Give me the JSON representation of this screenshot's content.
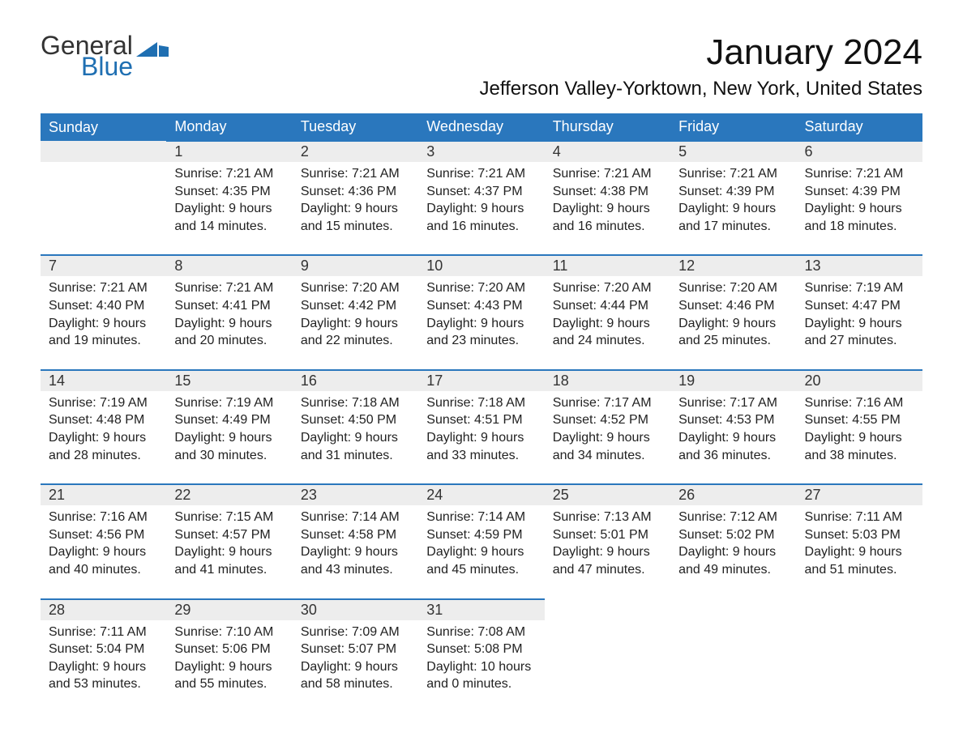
{
  "colors": {
    "header_bg": "#2a77bd",
    "header_text": "#ffffff",
    "daynum_bg": "#ededed",
    "row_border": "#2a77bd",
    "logo_gray": "#333333",
    "logo_blue": "#1f6fb2"
  },
  "logo": {
    "line1": "General",
    "line2": "Blue"
  },
  "title": "January 2024",
  "location": "Jefferson Valley-Yorktown, New York, United States",
  "day_headers": [
    "Sunday",
    "Monday",
    "Tuesday",
    "Wednesday",
    "Thursday",
    "Friday",
    "Saturday"
  ],
  "weeks": [
    [
      null,
      {
        "n": "1",
        "sunrise": "Sunrise: 7:21 AM",
        "sunset": "Sunset: 4:35 PM",
        "dl1": "Daylight: 9 hours",
        "dl2": "and 14 minutes."
      },
      {
        "n": "2",
        "sunrise": "Sunrise: 7:21 AM",
        "sunset": "Sunset: 4:36 PM",
        "dl1": "Daylight: 9 hours",
        "dl2": "and 15 minutes."
      },
      {
        "n": "3",
        "sunrise": "Sunrise: 7:21 AM",
        "sunset": "Sunset: 4:37 PM",
        "dl1": "Daylight: 9 hours",
        "dl2": "and 16 minutes."
      },
      {
        "n": "4",
        "sunrise": "Sunrise: 7:21 AM",
        "sunset": "Sunset: 4:38 PM",
        "dl1": "Daylight: 9 hours",
        "dl2": "and 16 minutes."
      },
      {
        "n": "5",
        "sunrise": "Sunrise: 7:21 AM",
        "sunset": "Sunset: 4:39 PM",
        "dl1": "Daylight: 9 hours",
        "dl2": "and 17 minutes."
      },
      {
        "n": "6",
        "sunrise": "Sunrise: 7:21 AM",
        "sunset": "Sunset: 4:39 PM",
        "dl1": "Daylight: 9 hours",
        "dl2": "and 18 minutes."
      }
    ],
    [
      {
        "n": "7",
        "sunrise": "Sunrise: 7:21 AM",
        "sunset": "Sunset: 4:40 PM",
        "dl1": "Daylight: 9 hours",
        "dl2": "and 19 minutes."
      },
      {
        "n": "8",
        "sunrise": "Sunrise: 7:21 AM",
        "sunset": "Sunset: 4:41 PM",
        "dl1": "Daylight: 9 hours",
        "dl2": "and 20 minutes."
      },
      {
        "n": "9",
        "sunrise": "Sunrise: 7:20 AM",
        "sunset": "Sunset: 4:42 PM",
        "dl1": "Daylight: 9 hours",
        "dl2": "and 22 minutes."
      },
      {
        "n": "10",
        "sunrise": "Sunrise: 7:20 AM",
        "sunset": "Sunset: 4:43 PM",
        "dl1": "Daylight: 9 hours",
        "dl2": "and 23 minutes."
      },
      {
        "n": "11",
        "sunrise": "Sunrise: 7:20 AM",
        "sunset": "Sunset: 4:44 PM",
        "dl1": "Daylight: 9 hours",
        "dl2": "and 24 minutes."
      },
      {
        "n": "12",
        "sunrise": "Sunrise: 7:20 AM",
        "sunset": "Sunset: 4:46 PM",
        "dl1": "Daylight: 9 hours",
        "dl2": "and 25 minutes."
      },
      {
        "n": "13",
        "sunrise": "Sunrise: 7:19 AM",
        "sunset": "Sunset: 4:47 PM",
        "dl1": "Daylight: 9 hours",
        "dl2": "and 27 minutes."
      }
    ],
    [
      {
        "n": "14",
        "sunrise": "Sunrise: 7:19 AM",
        "sunset": "Sunset: 4:48 PM",
        "dl1": "Daylight: 9 hours",
        "dl2": "and 28 minutes."
      },
      {
        "n": "15",
        "sunrise": "Sunrise: 7:19 AM",
        "sunset": "Sunset: 4:49 PM",
        "dl1": "Daylight: 9 hours",
        "dl2": "and 30 minutes."
      },
      {
        "n": "16",
        "sunrise": "Sunrise: 7:18 AM",
        "sunset": "Sunset: 4:50 PM",
        "dl1": "Daylight: 9 hours",
        "dl2": "and 31 minutes."
      },
      {
        "n": "17",
        "sunrise": "Sunrise: 7:18 AM",
        "sunset": "Sunset: 4:51 PM",
        "dl1": "Daylight: 9 hours",
        "dl2": "and 33 minutes."
      },
      {
        "n": "18",
        "sunrise": "Sunrise: 7:17 AM",
        "sunset": "Sunset: 4:52 PM",
        "dl1": "Daylight: 9 hours",
        "dl2": "and 34 minutes."
      },
      {
        "n": "19",
        "sunrise": "Sunrise: 7:17 AM",
        "sunset": "Sunset: 4:53 PM",
        "dl1": "Daylight: 9 hours",
        "dl2": "and 36 minutes."
      },
      {
        "n": "20",
        "sunrise": "Sunrise: 7:16 AM",
        "sunset": "Sunset: 4:55 PM",
        "dl1": "Daylight: 9 hours",
        "dl2": "and 38 minutes."
      }
    ],
    [
      {
        "n": "21",
        "sunrise": "Sunrise: 7:16 AM",
        "sunset": "Sunset: 4:56 PM",
        "dl1": "Daylight: 9 hours",
        "dl2": "and 40 minutes."
      },
      {
        "n": "22",
        "sunrise": "Sunrise: 7:15 AM",
        "sunset": "Sunset: 4:57 PM",
        "dl1": "Daylight: 9 hours",
        "dl2": "and 41 minutes."
      },
      {
        "n": "23",
        "sunrise": "Sunrise: 7:14 AM",
        "sunset": "Sunset: 4:58 PM",
        "dl1": "Daylight: 9 hours",
        "dl2": "and 43 minutes."
      },
      {
        "n": "24",
        "sunrise": "Sunrise: 7:14 AM",
        "sunset": "Sunset: 4:59 PM",
        "dl1": "Daylight: 9 hours",
        "dl2": "and 45 minutes."
      },
      {
        "n": "25",
        "sunrise": "Sunrise: 7:13 AM",
        "sunset": "Sunset: 5:01 PM",
        "dl1": "Daylight: 9 hours",
        "dl2": "and 47 minutes."
      },
      {
        "n": "26",
        "sunrise": "Sunrise: 7:12 AM",
        "sunset": "Sunset: 5:02 PM",
        "dl1": "Daylight: 9 hours",
        "dl2": "and 49 minutes."
      },
      {
        "n": "27",
        "sunrise": "Sunrise: 7:11 AM",
        "sunset": "Sunset: 5:03 PM",
        "dl1": "Daylight: 9 hours",
        "dl2": "and 51 minutes."
      }
    ],
    [
      {
        "n": "28",
        "sunrise": "Sunrise: 7:11 AM",
        "sunset": "Sunset: 5:04 PM",
        "dl1": "Daylight: 9 hours",
        "dl2": "and 53 minutes."
      },
      {
        "n": "29",
        "sunrise": "Sunrise: 7:10 AM",
        "sunset": "Sunset: 5:06 PM",
        "dl1": "Daylight: 9 hours",
        "dl2": "and 55 minutes."
      },
      {
        "n": "30",
        "sunrise": "Sunrise: 7:09 AM",
        "sunset": "Sunset: 5:07 PM",
        "dl1": "Daylight: 9 hours",
        "dl2": "and 58 minutes."
      },
      {
        "n": "31",
        "sunrise": "Sunrise: 7:08 AM",
        "sunset": "Sunset: 5:08 PM",
        "dl1": "Daylight: 10 hours",
        "dl2": "and 0 minutes."
      },
      null,
      null,
      null
    ]
  ]
}
